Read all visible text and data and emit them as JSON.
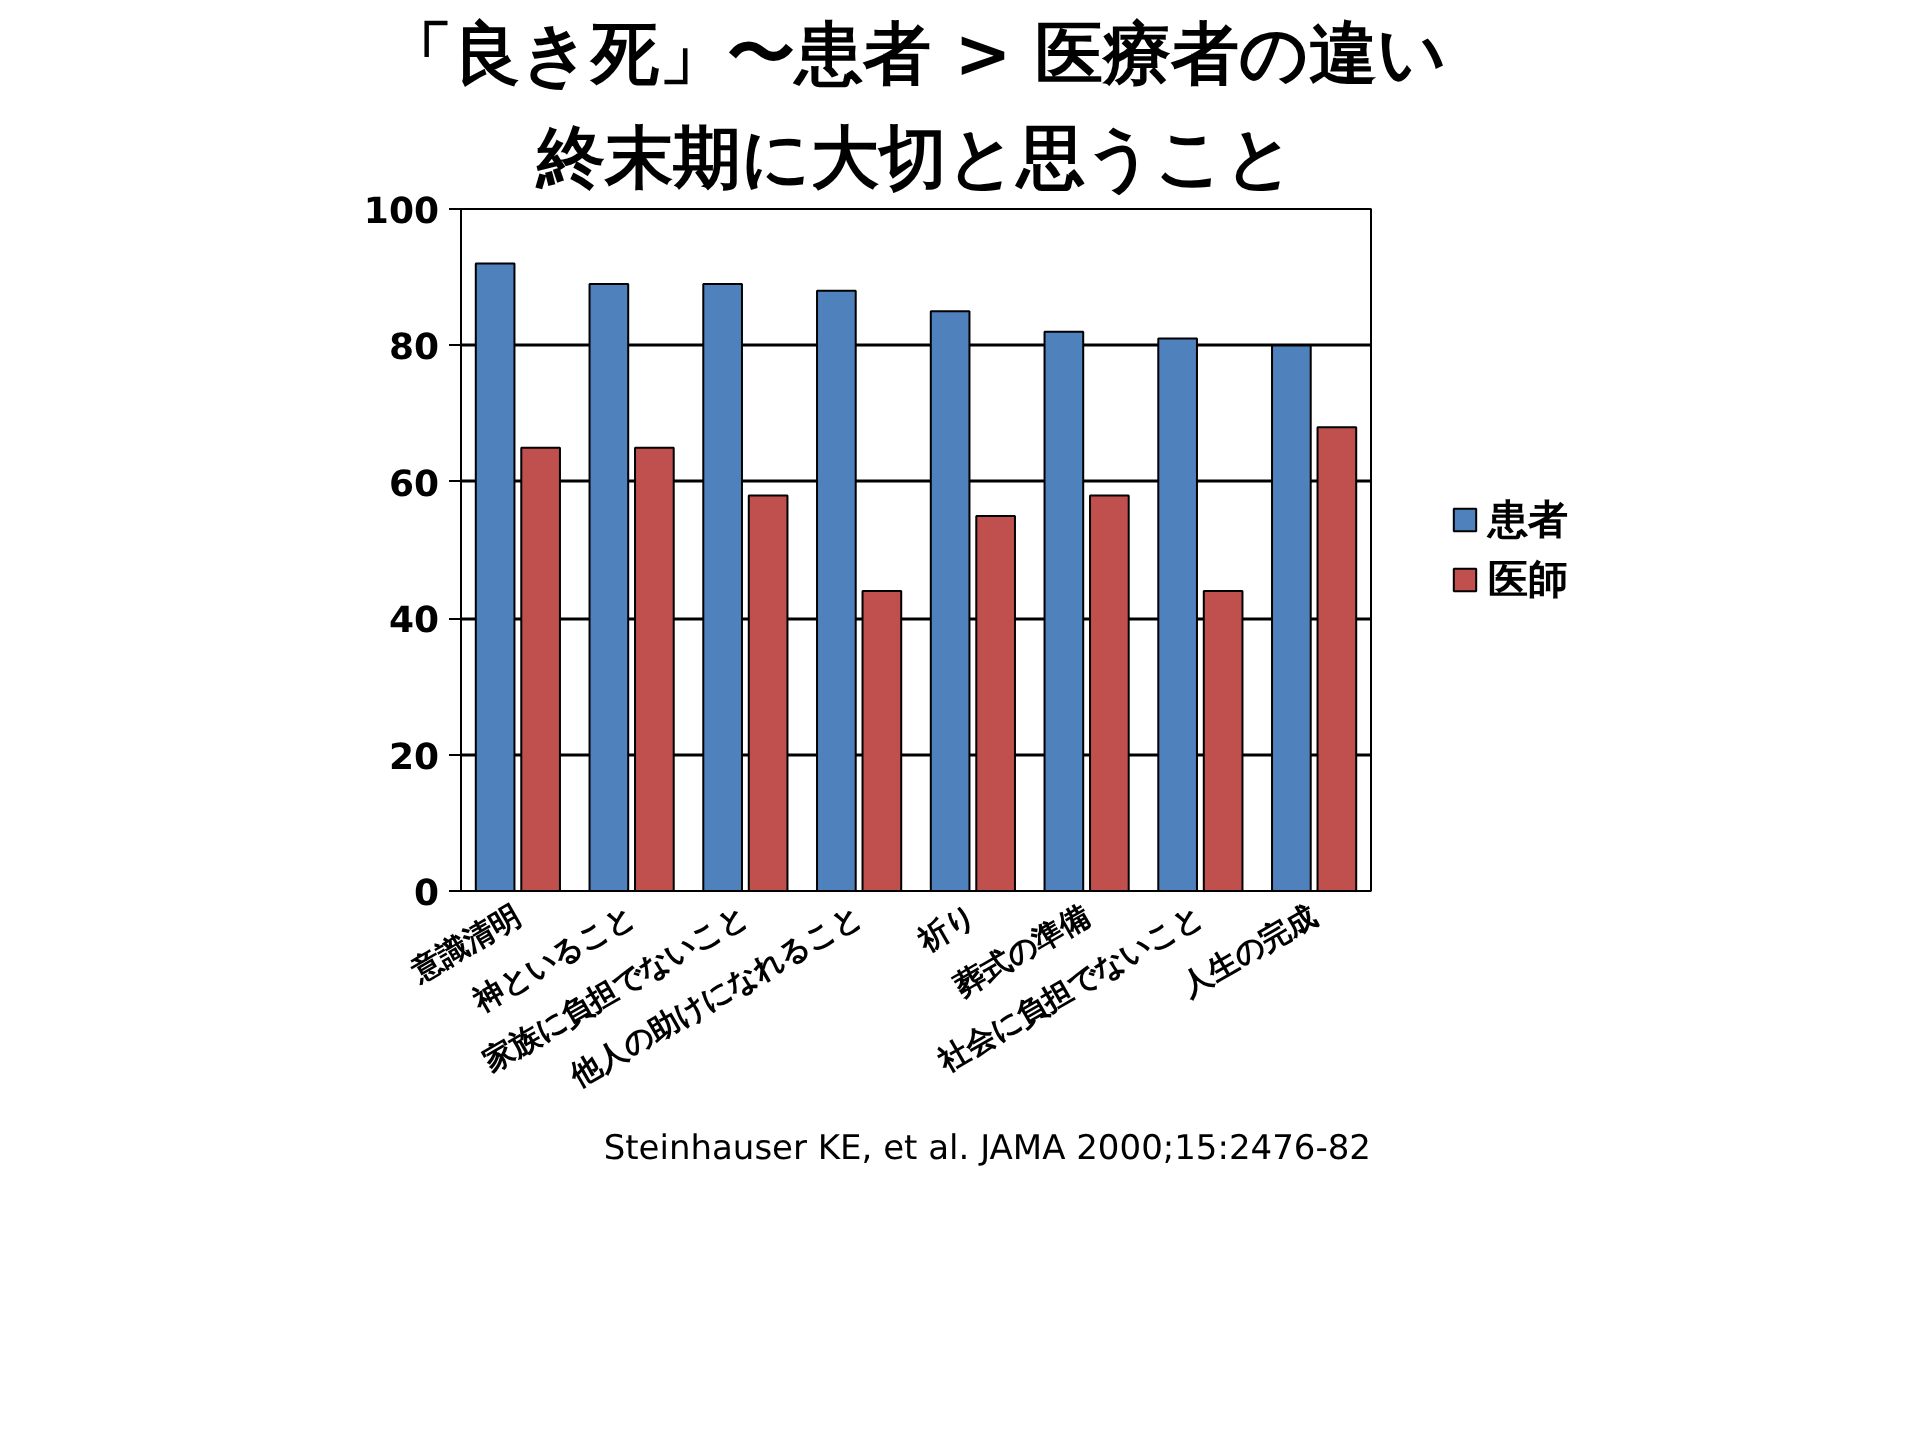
{
  "chart_data": {
    "type": "bar",
    "title": "「良き死」〜患者 > 医療者の違い",
    "subtitle": "終末期に大切と思うこと",
    "categories": [
      "意識清明",
      "神といること",
      "家族に負担でないこと",
      "他人の助けになれること",
      "祈り",
      "葬式の準備",
      "社会に負担でないこと",
      "人生の完成"
    ],
    "series": [
      {
        "name": "患者",
        "color": "#4f81bd",
        "values": [
          92,
          89,
          89,
          88,
          85,
          82,
          81,
          80
        ]
      },
      {
        "name": "医師",
        "color": "#c0504d",
        "values": [
          65,
          65,
          58,
          44,
          55,
          58,
          44,
          68
        ]
      }
    ],
    "ylim": [
      0,
      100
    ],
    "yticks": [
      0,
      20,
      40,
      60,
      80,
      100
    ],
    "grid": "y",
    "legend": "right",
    "annotations": [
      "Steinhauser KE, et al. JAMA 2000;15:2476-82"
    ]
  }
}
